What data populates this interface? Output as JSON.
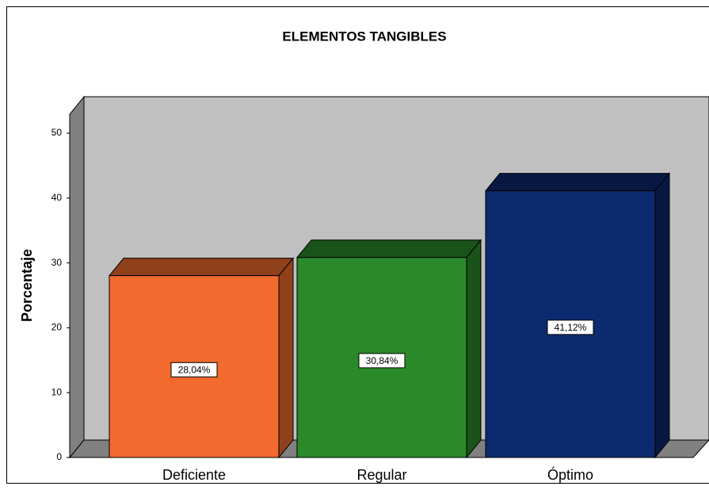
{
  "chart_data": {
    "type": "bar3d",
    "title": "ELEMENTOS TANGIBLES",
    "y_label": "Porcentaje",
    "categories": [
      "Deficiente",
      "Regular",
      "Óptimo"
    ],
    "values": [
      28.04,
      30.84,
      41.12
    ],
    "value_labels": [
      "28,04%",
      "30,84%",
      "41,12%"
    ],
    "colors": [
      "#f26a2e",
      "#2a8a2a",
      "#0c2a70"
    ],
    "ylim": [
      0,
      50
    ],
    "yticks": [
      0,
      10,
      20,
      30,
      40,
      50
    ]
  }
}
